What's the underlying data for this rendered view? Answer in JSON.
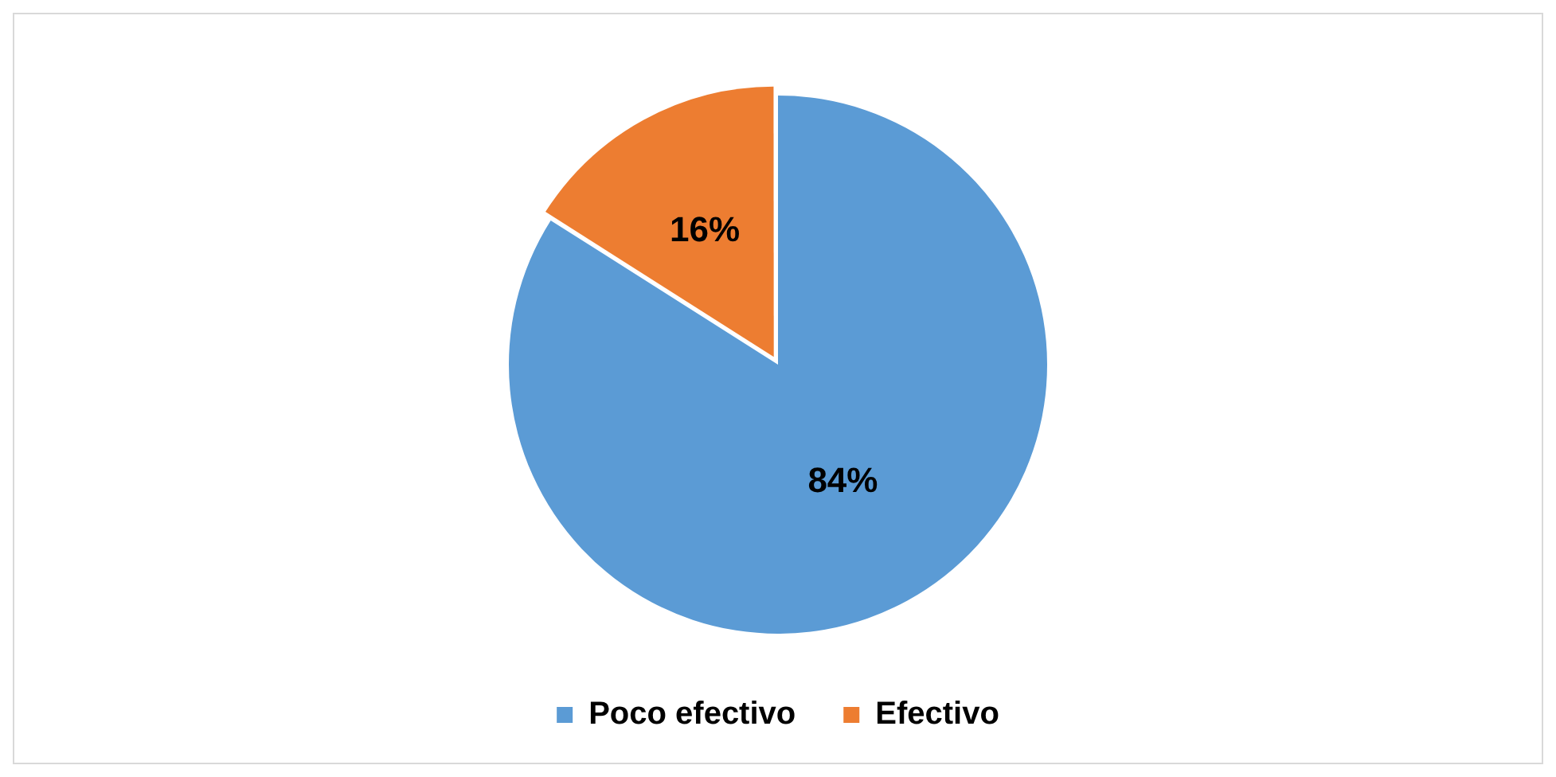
{
  "chart_data": {
    "type": "pie",
    "categories": [
      "Poco efectivo",
      "Efectivo"
    ],
    "values": [
      84,
      16
    ],
    "colors": [
      "#5b9bd5",
      "#ed7d31"
    ],
    "value_labels": [
      "84%",
      "16%"
    ],
    "legend": "bottom"
  }
}
